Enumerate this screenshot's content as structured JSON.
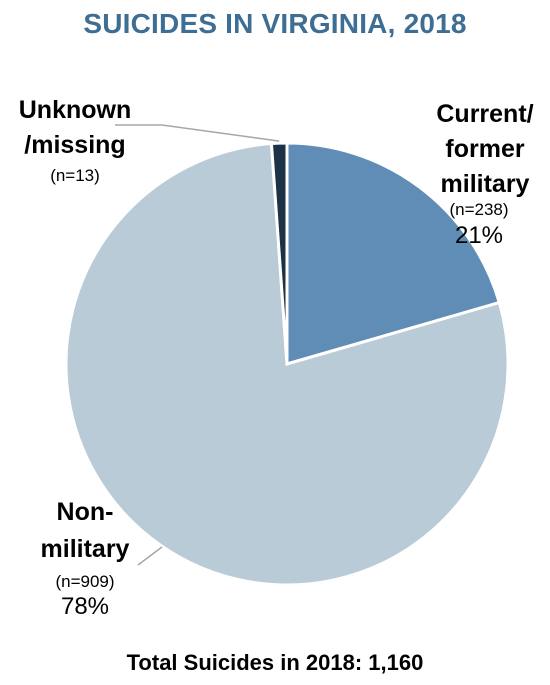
{
  "chart_data": {
    "type": "pie",
    "title": "SUICIDES IN VIRGINIA, 2018",
    "footer": "Total Suicides in 2018: 1,160",
    "colors": {
      "title": "#3f6e95",
      "current_former_military": "#5f8db5",
      "non_military": "#b8cbd6",
      "unknown_missing": "#1e3247",
      "leader_line": "#a6a6a6"
    },
    "slices": [
      {
        "label_lines": [
          "Current/",
          "former",
          "military"
        ],
        "n_text": "(n=238)",
        "value": 238,
        "percent_text": "21%"
      },
      {
        "label_lines": [
          "Non-",
          "military"
        ],
        "n_text": "(n=909)",
        "value": 909,
        "percent_text": "78%"
      },
      {
        "label_lines": [
          "Unknown",
          "/missing"
        ],
        "n_text": "(n=13)",
        "value": 13,
        "percent_text": ""
      }
    ]
  }
}
